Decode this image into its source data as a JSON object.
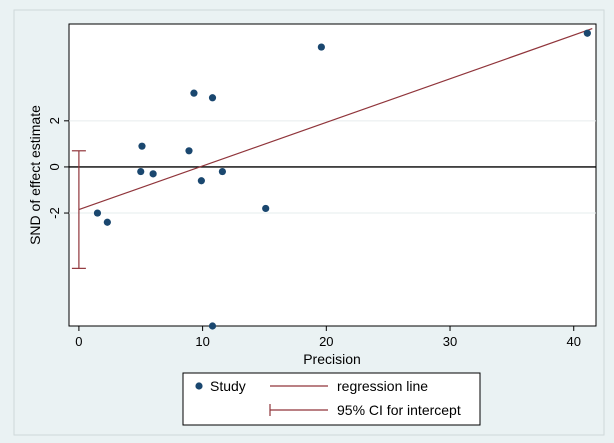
{
  "chart_data": {
    "type": "scatter",
    "xlabel": "Precision",
    "ylabel": "SND of effect estimate",
    "xlim": [
      -0.8,
      41.8
    ],
    "ylim": [
      -6.9,
      6.2
    ],
    "x_ticks": [
      0,
      10,
      20,
      30,
      40
    ],
    "y_ticks": [
      -2,
      0,
      2
    ],
    "grid": "horizontal",
    "legend_position": "bottom",
    "colors": {
      "points": "#1a476f",
      "regression": "#90353b",
      "zero_line": "#000000",
      "plot_bg": "#ffffff",
      "outer_bg": "#eaf2f3"
    },
    "series": [
      {
        "name": "Study",
        "kind": "points",
        "points": [
          {
            "x": 1.5,
            "y": -2.0
          },
          {
            "x": 2.3,
            "y": -2.4
          },
          {
            "x": 5.0,
            "y": -0.2
          },
          {
            "x": 5.1,
            "y": 0.9
          },
          {
            "x": 6.0,
            "y": -0.3
          },
          {
            "x": 8.9,
            "y": 0.7
          },
          {
            "x": 9.3,
            "y": 3.2
          },
          {
            "x": 9.9,
            "y": -0.6
          },
          {
            "x": 10.8,
            "y": 3.0
          },
          {
            "x": 10.8,
            "y": -6.9
          },
          {
            "x": 11.6,
            "y": -0.2
          },
          {
            "x": 15.1,
            "y": -1.8
          },
          {
            "x": 19.6,
            "y": 5.2
          },
          {
            "x": 41.1,
            "y": 5.8
          }
        ]
      },
      {
        "name": "regression line",
        "kind": "line",
        "points": [
          {
            "x": 0,
            "y": -1.85
          },
          {
            "x": 41.5,
            "y": 6.0
          }
        ]
      },
      {
        "name": "95% CI for intercept",
        "kind": "errorbar",
        "x": 0,
        "low": -4.4,
        "high": 0.7
      }
    ]
  }
}
